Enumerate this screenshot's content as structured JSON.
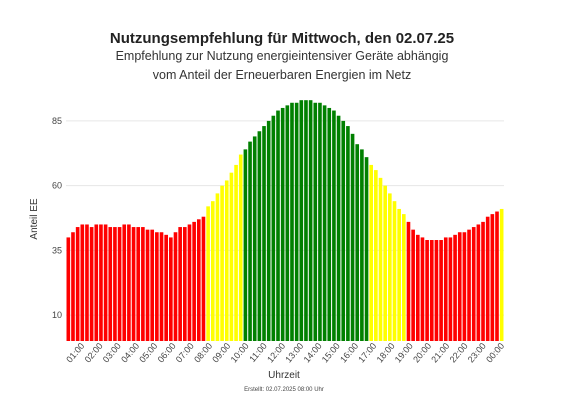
{
  "chart_data": {
    "type": "bar",
    "title": "Nutzungsempfehlung für Mittwoch, den 02.07.25",
    "subtitle_lines": [
      "Empfehlung zur Nutzung energieintensiver Geräte abhängig",
      "vom Anteil der Erneuerbaren Energien im Netz"
    ],
    "xlabel": "Uhrzeit",
    "ylabel": "Anteil EE",
    "footer": "Erstellt: 02.07.2025 08:00 Uhr",
    "ylim": [
      0,
      95
    ],
    "yticks": [
      10,
      35,
      60,
      85
    ],
    "grid": true,
    "x_ticks": [
      "01:00",
      "02:00",
      "03:00",
      "04:00",
      "05:00",
      "06:00",
      "07:00",
      "08:00",
      "09:00",
      "10:00",
      "11:00",
      "12:00",
      "13:00",
      "14:00",
      "15:00",
      "16:00",
      "17:00",
      "18:00",
      "19:00",
      "20:00",
      "21:00",
      "22:00",
      "23:00",
      "00:00"
    ],
    "colors": {
      "red": "#ff0000",
      "yellow": "#ffff00",
      "green": "#008000"
    },
    "values": [
      40,
      42,
      44,
      45,
      45,
      44,
      45,
      45,
      45,
      44,
      44,
      44,
      45,
      45,
      44,
      44,
      44,
      43,
      43,
      42,
      42,
      41,
      40,
      42,
      44,
      44,
      45,
      46,
      47,
      48,
      52,
      54,
      57,
      60,
      62,
      65,
      68,
      72,
      74,
      77,
      79,
      81,
      83,
      85,
      87,
      89,
      90,
      91,
      92,
      92,
      93,
      93,
      93,
      92,
      92,
      91,
      90,
      89,
      87,
      85,
      83,
      80,
      76,
      74,
      71,
      68,
      66,
      63,
      60,
      57,
      54,
      51,
      49,
      46,
      43,
      41,
      40,
      39,
      39,
      39,
      39,
      40,
      40,
      41,
      42,
      42,
      43,
      44,
      45,
      46,
      48,
      49,
      50,
      51
    ],
    "levels": [
      "r",
      "r",
      "r",
      "r",
      "r",
      "r",
      "r",
      "r",
      "r",
      "r",
      "r",
      "r",
      "r",
      "r",
      "r",
      "r",
      "r",
      "r",
      "r",
      "r",
      "r",
      "r",
      "r",
      "r",
      "r",
      "r",
      "r",
      "r",
      "r",
      "r",
      "y",
      "y",
      "y",
      "y",
      "y",
      "y",
      "y",
      "y",
      "g",
      "g",
      "g",
      "g",
      "g",
      "g",
      "g",
      "g",
      "g",
      "g",
      "g",
      "g",
      "g",
      "g",
      "g",
      "g",
      "g",
      "g",
      "g",
      "g",
      "g",
      "g",
      "g",
      "g",
      "g",
      "g",
      "g",
      "y",
      "y",
      "y",
      "y",
      "y",
      "y",
      "y",
      "y",
      "r",
      "r",
      "r",
      "r",
      "r",
      "r",
      "r",
      "r",
      "r",
      "r",
      "r",
      "r",
      "r",
      "r",
      "r",
      "r",
      "r",
      "r",
      "r",
      "r",
      "y"
    ]
  }
}
